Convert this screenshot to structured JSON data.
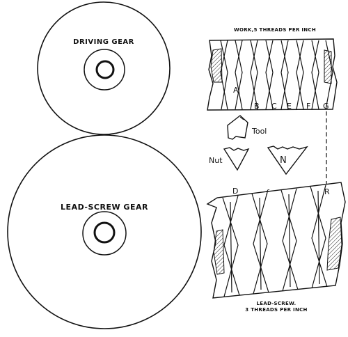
{
  "gears": {
    "driving": {
      "label": "DRIVING GEAR"
    },
    "lead_screw": {
      "label": "LEAD-SCREW GEAR"
    }
  },
  "work": {
    "caption": "WORK,5 THREADS PER INCH",
    "letters": [
      "A",
      "B",
      "C",
      "E",
      "F",
      "G"
    ]
  },
  "tool": {
    "label": "Tool"
  },
  "nut": {
    "label": "Nut",
    "letter": "N"
  },
  "lead_screw": {
    "caption_line1": "LEAD-SCREW.",
    "caption_line2": "3 THREADS PER INCH",
    "letters": [
      "D",
      "f",
      "R"
    ]
  }
}
